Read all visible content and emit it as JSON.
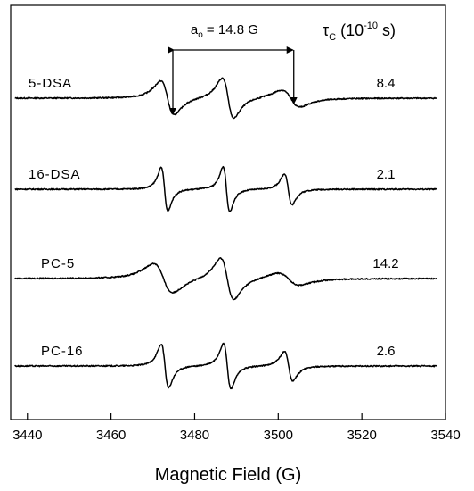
{
  "chart_data": {
    "type": "line",
    "xlabel": "Magnetic Field (G)",
    "xlim": [
      3436,
      3540
    ],
    "x_ticks": [
      3440,
      3460,
      3480,
      3500,
      3520,
      3540
    ],
    "tau_header": {
      "symbol": "τ",
      "sub": "C",
      "unit_open": " (10",
      "exp": "-10",
      "unit_close": " s)"
    },
    "splitting": {
      "prefix": "a",
      "sub": "o",
      "text": " = 14.8 G",
      "from": 3475,
      "to": 3503.5
    },
    "series": [
      {
        "name": "5-DSA",
        "tau": "8.4",
        "lines": [
          {
            "center": 3473.5,
            "width": 1.6,
            "amp": 22
          },
          {
            "center": 3488.0,
            "width": 1.4,
            "amp": 26
          },
          {
            "center": 3503.0,
            "width": 2.2,
            "amp": 11
          }
        ],
        "tau_c": 8.4
      },
      {
        "name": "16-DSA",
        "tau": "2.1",
        "lines": [
          {
            "center": 3472.8,
            "width": 0.8,
            "amp": 28
          },
          {
            "center": 3487.6,
            "width": 0.8,
            "amp": 29
          },
          {
            "center": 3502.4,
            "width": 0.9,
            "amp": 20
          }
        ],
        "tau_c": 2.1
      },
      {
        "name": "PC-5",
        "tau": "14.2",
        "lines": [
          {
            "center": 3472.5,
            "width": 2.3,
            "amp": 19
          },
          {
            "center": 3487.8,
            "width": 1.6,
            "amp": 27
          },
          {
            "center": 3502.5,
            "width": 2.6,
            "amp": 8
          }
        ],
        "tau_c": 14.2
      },
      {
        "name": "PC-16",
        "tau": "2.6",
        "lines": [
          {
            "center": 3472.9,
            "width": 0.9,
            "amp": 28
          },
          {
            "center": 3487.8,
            "width": 0.9,
            "amp": 29
          },
          {
            "center": 3502.5,
            "width": 1.0,
            "amp": 19
          }
        ],
        "tau_c": 2.6
      }
    ],
    "grid": false,
    "legend": "none"
  }
}
